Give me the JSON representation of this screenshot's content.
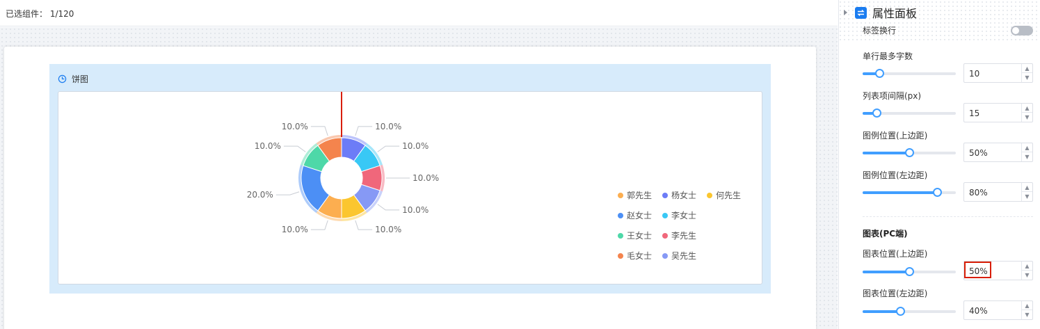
{
  "topbar": {
    "selected_text": "已选组件： 1/120"
  },
  "widget": {
    "title": "饼图"
  },
  "chart_data": {
    "type": "pie",
    "donut": true,
    "slices": [
      {
        "name": "杨女士",
        "value": 10,
        "label": "10.0%",
        "color": "#6c7cf7"
      },
      {
        "name": "李女士",
        "value": 10,
        "label": "10.0%",
        "color": "#39c8f5"
      },
      {
        "name": "李先生",
        "value": 10,
        "label": "10.0%",
        "color": "#f0677b"
      },
      {
        "name": "吴先生",
        "value": 10,
        "label": "10.0%",
        "color": "#8699f5"
      },
      {
        "name": "何先生",
        "value": 10,
        "label": "10.0%",
        "color": "#fbc62f"
      },
      {
        "name": "郭先生",
        "value": 10,
        "label": "10.0%",
        "color": "#fcae50"
      },
      {
        "name": "赵女士",
        "value": 20,
        "label": "20.0%",
        "color": "#4c8ff5"
      },
      {
        "name": "王女士",
        "value": 10,
        "label": "10.0%",
        "color": "#4ed8a8"
      },
      {
        "name": "毛女士",
        "value": 10,
        "label": "10.0%",
        "color": "#f4844d"
      }
    ],
    "legend": {
      "placement": "right",
      "rows": [
        [
          "郭先生",
          "杨女士",
          "何先生"
        ],
        [
          "赵女士",
          "李女士"
        ],
        [
          "王女士",
          "李先生"
        ],
        [
          "毛女士",
          "吴先生"
        ]
      ]
    }
  },
  "panel": {
    "title": "属性面板",
    "props": [
      {
        "label": "标签换行",
        "type": "toggle",
        "on": false
      },
      {
        "label": "单行最多字数",
        "type": "slider",
        "value": "10",
        "level": 0.18
      },
      {
        "label": "列表项间隔(px)",
        "type": "slider",
        "value": "15",
        "level": 0.15
      },
      {
        "label": "图例位置(上边距)",
        "type": "slider",
        "value": "50%",
        "level": 0.5
      },
      {
        "label": "图例位置(左边距)",
        "type": "slider",
        "value": "80%",
        "level": 0.8
      }
    ],
    "section": "图表(PC端)",
    "section_props": [
      {
        "label": "图表位置(上边距)",
        "type": "slider",
        "value": "50%",
        "level": 0.5
      },
      {
        "label": "图表位置(左边距)",
        "type": "slider",
        "value": "40%",
        "level": 0.4
      }
    ]
  },
  "colors": {
    "accent": "#409eff",
    "highlight": "#d81e06",
    "widget_bg": "#d7ebfb"
  }
}
